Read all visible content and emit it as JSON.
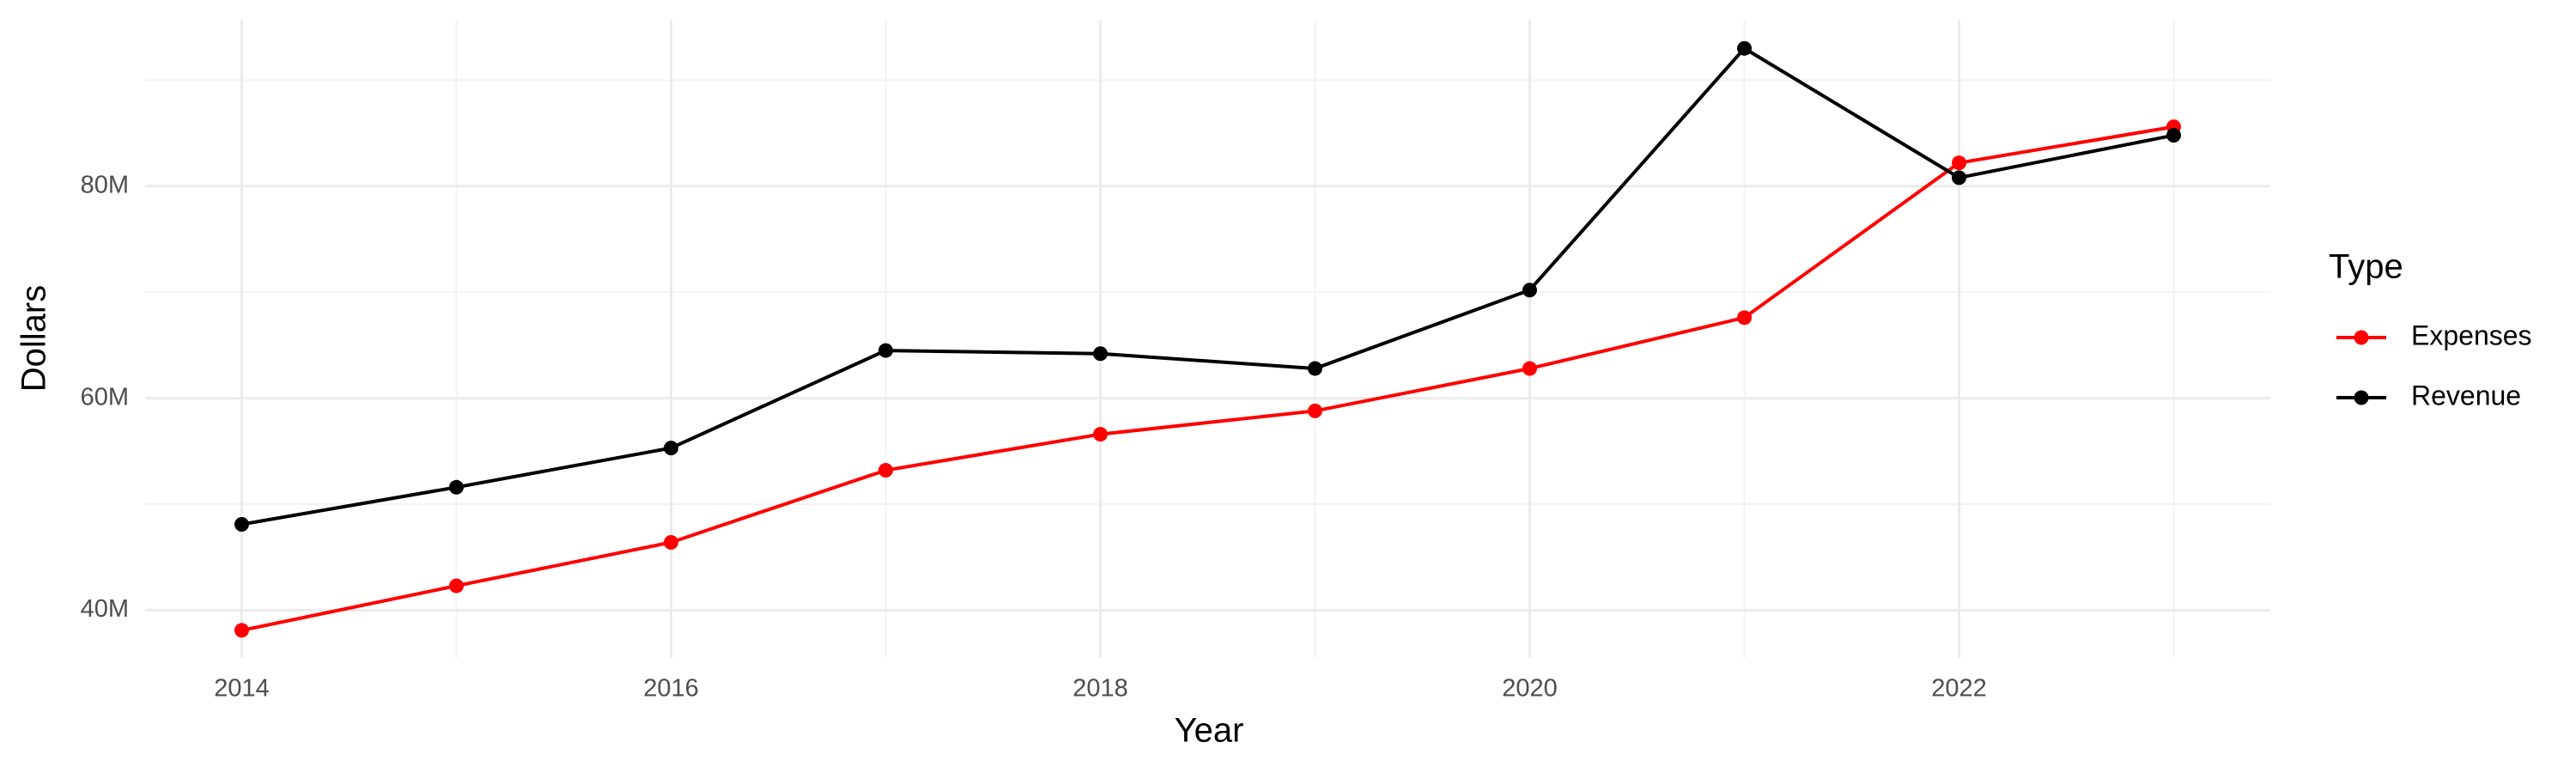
{
  "chart_data": {
    "type": "line",
    "x_label": "Year",
    "y_label": "Dollars",
    "legend_title": "Type",
    "legend": "right",
    "grid": true,
    "x": [
      2014,
      2015,
      2016,
      2017,
      2018,
      2019,
      2020,
      2021,
      2022,
      2023
    ],
    "series": [
      {
        "name": "Expenses",
        "color": "#ff0000",
        "values": [
          38100000,
          42300000,
          46400000,
          53200000,
          56600000,
          58800000,
          62800000,
          67600000,
          82200000,
          85600000
        ]
      },
      {
        "name": "Revenue",
        "color": "#000000",
        "values": [
          48100000,
          51600000,
          55300000,
          64500000,
          64200000,
          62800000,
          70200000,
          93000000,
          80800000,
          84800000
        ]
      }
    ],
    "xlim": [
      2013.55,
      2023.45
    ],
    "xticks": [
      2014,
      2016,
      2018,
      2020,
      2022
    ],
    "ylim": [
      35500000,
      95700000
    ],
    "yticks": [
      {
        "value": 40000000,
        "label": "40M"
      },
      {
        "value": 60000000,
        "label": "60M"
      },
      {
        "value": 80000000,
        "label": "80M"
      }
    ]
  }
}
